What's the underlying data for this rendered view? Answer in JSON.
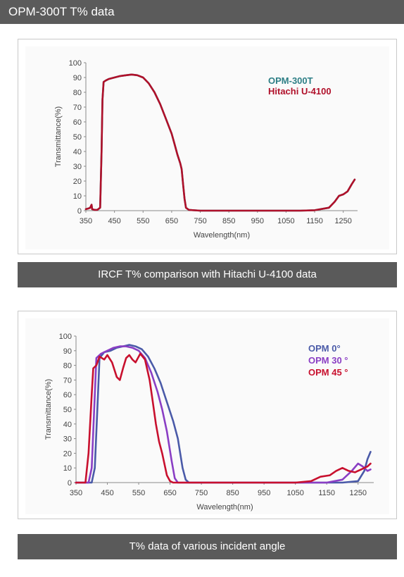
{
  "header": {
    "title": "OPM-300T T% data"
  },
  "captions": {
    "chart1": "IRCF T% comparison with Hitachi U-4100 data",
    "chart2": "T% data of various incident angle"
  },
  "chart_data": [
    {
      "type": "line",
      "xlabel": "Wavelength(nm)",
      "ylabel": "Transmittance(%)",
      "xlim": [
        350,
        1300
      ],
      "ylim": [
        0,
        100
      ],
      "xticks": [
        350,
        450,
        550,
        650,
        750,
        850,
        950,
        1050,
        1150,
        1250
      ],
      "yticks": [
        0,
        10,
        20,
        30,
        40,
        50,
        60,
        70,
        80,
        90,
        100
      ],
      "legend_position": "top-right",
      "series": [
        {
          "name": "OPM-300T",
          "color": "#2e7f86",
          "points": [
            [
              350,
              1
            ],
            [
              360,
              1.5
            ],
            [
              365,
              2
            ],
            [
              370,
              4
            ],
            [
              372,
              1
            ],
            [
              380,
              0.5
            ],
            [
              390,
              0.5
            ],
            [
              400,
              2
            ],
            [
              405,
              40
            ],
            [
              408,
              75
            ],
            [
              412,
              87
            ],
            [
              420,
              88
            ],
            [
              430,
              89
            ],
            [
              450,
              90
            ],
            [
              470,
              91
            ],
            [
              490,
              91.5
            ],
            [
              510,
              92
            ],
            [
              530,
              91.5
            ],
            [
              550,
              90
            ],
            [
              570,
              86
            ],
            [
              590,
              80
            ],
            [
              610,
              72
            ],
            [
              630,
              62
            ],
            [
              650,
              52
            ],
            [
              660,
              45
            ],
            [
              670,
              38
            ],
            [
              680,
              32
            ],
            [
              685,
              28
            ],
            [
              690,
              18
            ],
            [
              695,
              8
            ],
            [
              700,
              2
            ],
            [
              710,
              0.5
            ],
            [
              750,
              0
            ],
            [
              1000,
              0
            ],
            [
              1100,
              0
            ],
            [
              1150,
              0.3
            ],
            [
              1200,
              2
            ],
            [
              1220,
              6
            ],
            [
              1235,
              10
            ],
            [
              1250,
              11
            ],
            [
              1265,
              13
            ],
            [
              1280,
              18
            ],
            [
              1290,
              21
            ]
          ]
        },
        {
          "name": "Hitachi U-4100",
          "color": "#b0102a",
          "points": [
            [
              350,
              1
            ],
            [
              360,
              1.5
            ],
            [
              365,
              2
            ],
            [
              370,
              4
            ],
            [
              372,
              1
            ],
            [
              380,
              0.5
            ],
            [
              390,
              0.5
            ],
            [
              400,
              2
            ],
            [
              405,
              40
            ],
            [
              408,
              75
            ],
            [
              412,
              87
            ],
            [
              420,
              88
            ],
            [
              430,
              89
            ],
            [
              450,
              90
            ],
            [
              470,
              91
            ],
            [
              490,
              91.5
            ],
            [
              510,
              92
            ],
            [
              530,
              91.5
            ],
            [
              550,
              90
            ],
            [
              570,
              86
            ],
            [
              590,
              80
            ],
            [
              610,
              72
            ],
            [
              630,
              62
            ],
            [
              650,
              52
            ],
            [
              660,
              45
            ],
            [
              670,
              38
            ],
            [
              680,
              32
            ],
            [
              685,
              28
            ],
            [
              690,
              18
            ],
            [
              695,
              8
            ],
            [
              700,
              2
            ],
            [
              710,
              0.5
            ],
            [
              750,
              0
            ],
            [
              1000,
              0
            ],
            [
              1100,
              0
            ],
            [
              1150,
              0.3
            ],
            [
              1200,
              2
            ],
            [
              1220,
              6
            ],
            [
              1235,
              10
            ],
            [
              1250,
              11
            ],
            [
              1265,
              13
            ],
            [
              1280,
              18
            ],
            [
              1290,
              21
            ]
          ]
        }
      ]
    },
    {
      "type": "line",
      "xlabel": "Wavelength(nm)",
      "ylabel": "Transmittance(%)",
      "xlim": [
        350,
        1300
      ],
      "ylim": [
        0,
        100
      ],
      "xticks": [
        350,
        450,
        550,
        650,
        750,
        850,
        950,
        1050,
        1150,
        1250
      ],
      "yticks": [
        0,
        10,
        20,
        30,
        40,
        50,
        60,
        70,
        80,
        90,
        100
      ],
      "legend_position": "top-right",
      "series": [
        {
          "name": "OPM 0°",
          "color": "#4a5aa8",
          "points": [
            [
              350,
              0
            ],
            [
              400,
              0
            ],
            [
              410,
              10
            ],
            [
              420,
              60
            ],
            [
              425,
              85
            ],
            [
              440,
              89
            ],
            [
              460,
              90
            ],
            [
              480,
              92
            ],
            [
              500,
              93
            ],
            [
              520,
              94
            ],
            [
              540,
              93
            ],
            [
              560,
              91
            ],
            [
              580,
              86
            ],
            [
              600,
              78
            ],
            [
              620,
              68
            ],
            [
              640,
              55
            ],
            [
              660,
              42
            ],
            [
              675,
              30
            ],
            [
              690,
              10
            ],
            [
              700,
              2
            ],
            [
              710,
              0
            ],
            [
              1200,
              0
            ],
            [
              1250,
              1
            ],
            [
              1270,
              8
            ],
            [
              1280,
              16
            ],
            [
              1290,
              21
            ]
          ]
        },
        {
          "name": "OPM 30 °",
          "color": "#8a3ec4",
          "points": [
            [
              350,
              0
            ],
            [
              390,
              0
            ],
            [
              400,
              10
            ],
            [
              410,
              60
            ],
            [
              415,
              85
            ],
            [
              430,
              88
            ],
            [
              450,
              90
            ],
            [
              470,
              92
            ],
            [
              490,
              93
            ],
            [
              510,
              93
            ],
            [
              530,
              92
            ],
            [
              550,
              90
            ],
            [
              570,
              85
            ],
            [
              590,
              75
            ],
            [
              610,
              62
            ],
            [
              625,
              50
            ],
            [
              640,
              35
            ],
            [
              655,
              15
            ],
            [
              665,
              3
            ],
            [
              675,
              0
            ],
            [
              1150,
              0
            ],
            [
              1200,
              2
            ],
            [
              1230,
              8
            ],
            [
              1250,
              13
            ],
            [
              1265,
              11
            ],
            [
              1280,
              8
            ],
            [
              1290,
              9
            ]
          ]
        },
        {
          "name": "OPM 45 °",
          "color": "#c8102e",
          "points": [
            [
              350,
              0
            ],
            [
              380,
              0
            ],
            [
              390,
              20
            ],
            [
              400,
              60
            ],
            [
              405,
              78
            ],
            [
              415,
              80
            ],
            [
              425,
              86
            ],
            [
              440,
              84
            ],
            [
              450,
              87
            ],
            [
              465,
              82
            ],
            [
              480,
              72
            ],
            [
              490,
              70
            ],
            [
              500,
              78
            ],
            [
              510,
              85
            ],
            [
              520,
              87
            ],
            [
              530,
              84
            ],
            [
              540,
              82
            ],
            [
              555,
              88
            ],
            [
              570,
              84
            ],
            [
              585,
              70
            ],
            [
              595,
              55
            ],
            [
              605,
              40
            ],
            [
              615,
              28
            ],
            [
              625,
              20
            ],
            [
              640,
              5
            ],
            [
              650,
              1
            ],
            [
              660,
              0
            ],
            [
              1050,
              0
            ],
            [
              1100,
              1
            ],
            [
              1130,
              4
            ],
            [
              1160,
              5
            ],
            [
              1180,
              8
            ],
            [
              1200,
              10
            ],
            [
              1220,
              8
            ],
            [
              1240,
              7
            ],
            [
              1260,
              9
            ],
            [
              1280,
              11
            ],
            [
              1290,
              13
            ]
          ]
        }
      ]
    }
  ]
}
